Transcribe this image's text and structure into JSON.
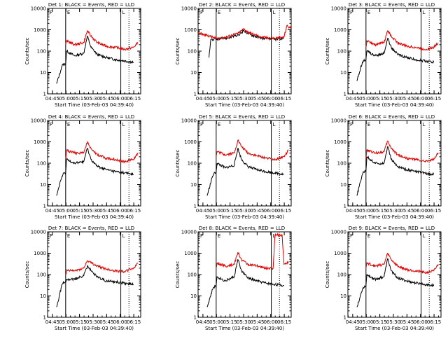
{
  "chart_data": [
    {
      "type": "line",
      "title": "Det 1: BLACK = Events, RED = LLD",
      "xlabel": "Start Time (03-Feb-03 04:39:40)",
      "ylabel": "Counts/sec",
      "y_scale": "log",
      "ylim": [
        1,
        10000
      ],
      "y_ticks": [
        "1",
        "10",
        "100",
        "1000",
        "10000"
      ],
      "x_ticks": [
        "04:45",
        "05:00",
        "05:15",
        "05:30",
        "05:45",
        "06:00",
        "06:15"
      ],
      "x_tick_minutes": [
        5.33,
        20.33,
        35.33,
        50.33,
        65.33,
        80.33,
        95.33
      ],
      "xlim_minutes": [
        0,
        103
      ],
      "markers": {
        "solid_lines_minutes": [
          20,
          81
        ],
        "dotted_line_minutes": 90,
        "labels": [
          "F",
          "E",
          "L"
        ]
      },
      "series": [
        {
          "name": "Events",
          "color": "#000000",
          "x_minutes": [
            10,
            16,
            17,
            20,
            21,
            30,
            40,
            44,
            48,
            55,
            65,
            75,
            85,
            95
          ],
          "values": [
            3,
            20,
            25,
            25,
            100,
            60,
            80,
            500,
            150,
            70,
            50,
            40,
            35,
            30
          ]
        },
        {
          "name": "LLD",
          "color": "#e00000",
          "x_minutes": [
            20,
            21,
            30,
            40,
            44,
            48,
            55,
            65,
            75,
            85,
            95,
            100
          ],
          "values": [
            200,
            300,
            200,
            250,
            900,
            500,
            250,
            170,
            150,
            120,
            150,
            250
          ]
        }
      ]
    },
    {
      "type": "line",
      "title": "Det 2: BLACK = Events, RED = LLD",
      "xlabel": "Start Time (03-Feb-03 04:39:40)",
      "ylabel": "Counts/sec",
      "y_scale": "log",
      "ylim": [
        1,
        10000
      ],
      "y_ticks": [
        "1",
        "10",
        "100",
        "1000",
        "10000"
      ],
      "x_ticks": [
        "04:45",
        "05:00",
        "05:15",
        "05:30",
        "05:45",
        "06:00",
        "06:15"
      ],
      "x_tick_minutes": [
        5.33,
        20.33,
        35.33,
        50.33,
        65.33,
        80.33,
        95.33
      ],
      "xlim_minutes": [
        0,
        103
      ],
      "markers": {
        "solid_lines_minutes": [
          20,
          81
        ],
        "dotted_line_minutes": 90,
        "labels": [
          "F",
          "E",
          "L"
        ]
      },
      "series": [
        {
          "name": "Events",
          "color": "#000000",
          "x_minutes": [
            12,
            14,
            20,
            30,
            45,
            50,
            58,
            70,
            85,
            95
          ],
          "values": [
            50,
            350,
            350,
            400,
            550,
            900,
            600,
            400,
            350,
            400
          ]
        },
        {
          "name": "LLD",
          "color": "#e00000",
          "x_minutes": [
            0,
            10,
            20,
            30,
            45,
            50,
            58,
            70,
            85,
            95,
            98,
            103
          ],
          "values": [
            700,
            550,
            400,
            450,
            700,
            1100,
            700,
            450,
            400,
            450,
            1500,
            1200
          ]
        }
      ]
    },
    {
      "type": "line",
      "title": "Det 3: BLACK = Events, RED = LLD",
      "xlabel": "Start Time (03-Feb-03 04:39:40)",
      "ylabel": "Counts/sec",
      "y_scale": "log",
      "ylim": [
        1,
        10000
      ],
      "y_ticks": [
        "1",
        "10",
        "100",
        "1000",
        "10000"
      ],
      "x_ticks": [
        "04:45",
        "05:00",
        "05:15",
        "05:30",
        "05:45",
        "06:00",
        "06:15"
      ],
      "x_tick_minutes": [
        5.33,
        20.33,
        35.33,
        50.33,
        65.33,
        80.33,
        95.33
      ],
      "xlim_minutes": [
        0,
        103
      ],
      "markers": {
        "solid_lines_minutes": [
          20,
          81
        ],
        "dotted_line_minutes": 90,
        "labels": [
          "F",
          "E",
          "L"
        ]
      },
      "series": [
        {
          "name": "Events",
          "color": "#000000",
          "x_minutes": [
            10,
            16,
            17,
            20,
            21,
            30,
            40,
            44,
            48,
            55,
            65,
            75,
            85,
            95
          ],
          "values": [
            4,
            30,
            35,
            40,
            100,
            60,
            80,
            400,
            150,
            70,
            50,
            40,
            35,
            30
          ]
        },
        {
          "name": "LLD",
          "color": "#e00000",
          "x_minutes": [
            20,
            21,
            30,
            40,
            44,
            48,
            55,
            65,
            75,
            85,
            95,
            100
          ],
          "values": [
            150,
            300,
            200,
            250,
            900,
            500,
            250,
            170,
            150,
            120,
            150,
            250
          ]
        }
      ]
    },
    {
      "type": "line",
      "title": "Det 4: BLACK = Events, RED = LLD",
      "xlabel": "Start Time (03-Feb-03 04:39:40)",
      "ylabel": "Counts/sec",
      "y_scale": "log",
      "ylim": [
        1,
        10000
      ],
      "y_ticks": [
        "1",
        "10",
        "100",
        "1000",
        "10000"
      ],
      "x_ticks": [
        "04:45",
        "05:00",
        "05:15",
        "05:30",
        "05:45",
        "06:00",
        "06:15"
      ],
      "x_tick_minutes": [
        5.33,
        20.33,
        35.33,
        50.33,
        65.33,
        80.33,
        95.33
      ],
      "xlim_minutes": [
        0,
        103
      ],
      "markers": {
        "solid_lines_minutes": [
          20,
          81
        ],
        "dotted_line_minutes": 90,
        "labels": [
          "F",
          "E",
          "L"
        ]
      },
      "series": [
        {
          "name": "Events",
          "color": "#000000",
          "x_minutes": [
            10,
            16,
            17,
            20,
            21,
            30,
            40,
            44,
            48,
            55,
            65,
            75,
            85,
            95
          ],
          "values": [
            3,
            25,
            30,
            35,
            150,
            100,
            120,
            500,
            150,
            70,
            50,
            40,
            35,
            30
          ]
        },
        {
          "name": "LLD",
          "color": "#e00000",
          "x_minutes": [
            20,
            21,
            30,
            40,
            44,
            48,
            55,
            65,
            75,
            85,
            95,
            100
          ],
          "values": [
            150,
            400,
            300,
            300,
            1000,
            500,
            250,
            170,
            150,
            120,
            150,
            300
          ]
        }
      ]
    },
    {
      "type": "line",
      "title": "Det 5: BLACK = Events, RED = LLD",
      "xlabel": "Start Time (03-Feb-03 04:39:40)",
      "ylabel": "Counts/sec",
      "y_scale": "log",
      "ylim": [
        1,
        10000
      ],
      "y_ticks": [
        "1",
        "10",
        "100",
        "1000",
        "10000"
      ],
      "x_ticks": [
        "04:45",
        "05:00",
        "05:15",
        "05:30",
        "05:45",
        "06:00",
        "06:15"
      ],
      "x_tick_minutes": [
        5.33,
        20.33,
        35.33,
        50.33,
        65.33,
        80.33,
        95.33
      ],
      "xlim_minutes": [
        0,
        103
      ],
      "markers": {
        "solid_lines_minutes": [
          20,
          81
        ],
        "dotted_line_minutes": 90,
        "labels": [
          "F",
          "E",
          "L"
        ]
      },
      "series": [
        {
          "name": "Events",
          "color": "#000000",
          "x_minutes": [
            10,
            16,
            17,
            20,
            21,
            30,
            40,
            44,
            48,
            55,
            65,
            75,
            85,
            95
          ],
          "values": [
            3,
            25,
            30,
            40,
            100,
            60,
            80,
            500,
            150,
            70,
            50,
            40,
            35,
            30
          ]
        },
        {
          "name": "LLD",
          "color": "#e00000",
          "x_minutes": [
            20,
            21,
            30,
            40,
            44,
            48,
            55,
            65,
            75,
            85,
            95,
            100
          ],
          "values": [
            200,
            350,
            250,
            300,
            1200,
            600,
            300,
            220,
            180,
            150,
            200,
            400
          ]
        }
      ]
    },
    {
      "type": "line",
      "title": "Det 6: BLACK = Events, RED = LLD",
      "xlabel": "Start Time (03-Feb-03 04:39:40)",
      "ylabel": "Counts/sec",
      "y_scale": "log",
      "ylim": [
        1,
        10000
      ],
      "y_ticks": [
        "1",
        "10",
        "100",
        "1000",
        "10000"
      ],
      "x_ticks": [
        "04:45",
        "05:00",
        "05:15",
        "05:30",
        "05:45",
        "06:00",
        "06:15"
      ],
      "x_tick_minutes": [
        5.33,
        20.33,
        35.33,
        50.33,
        65.33,
        80.33,
        95.33
      ],
      "xlim_minutes": [
        0,
        103
      ],
      "markers": {
        "solid_lines_minutes": [
          20,
          81
        ],
        "dotted_line_minutes": 90,
        "labels": [
          "F",
          "E",
          "L"
        ]
      },
      "series": [
        {
          "name": "Events",
          "color": "#000000",
          "x_minutes": [
            10,
            16,
            17,
            20,
            21,
            30,
            40,
            44,
            48,
            55,
            65,
            75,
            85,
            95
          ],
          "values": [
            3,
            30,
            40,
            45,
            200,
            100,
            100,
            600,
            150,
            70,
            50,
            40,
            35,
            30
          ]
        },
        {
          "name": "LLD",
          "color": "#e00000",
          "x_minutes": [
            20,
            21,
            30,
            40,
            44,
            48,
            55,
            65,
            75,
            85,
            95,
            100
          ],
          "values": [
            150,
            400,
            300,
            350,
            1100,
            500,
            250,
            170,
            150,
            120,
            150,
            300
          ]
        }
      ]
    },
    {
      "type": "line",
      "title": "Det 7: BLACK = Events, RED = LLD",
      "xlabel": "Start Time (03-Feb-03 04:39:40)",
      "ylabel": "Counts/sec",
      "y_scale": "log",
      "ylim": [
        1,
        10000
      ],
      "y_ticks": [
        "1",
        "10",
        "100",
        "1000",
        "10000"
      ],
      "x_ticks": [
        "04:45",
        "05:00",
        "05:15",
        "05:30",
        "05:45",
        "06:00",
        "06:15"
      ],
      "x_tick_minutes": [
        5.33,
        20.33,
        35.33,
        50.33,
        65.33,
        80.33,
        95.33
      ],
      "xlim_minutes": [
        0,
        103
      ],
      "markers": {
        "solid_lines_minutes": [
          20,
          81
        ],
        "dotted_line_minutes": 90,
        "labels": [
          "F",
          "E",
          "L"
        ]
      },
      "series": [
        {
          "name": "Events",
          "color": "#000000",
          "x_minutes": [
            10,
            16,
            17,
            20,
            21,
            30,
            40,
            44,
            48,
            55,
            65,
            75,
            85,
            95
          ],
          "values": [
            3,
            35,
            40,
            50,
            60,
            60,
            90,
            250,
            150,
            80,
            50,
            45,
            40,
            35
          ]
        },
        {
          "name": "LLD",
          "color": "#e00000",
          "x_minutes": [
            20,
            21,
            30,
            40,
            44,
            48,
            55,
            65,
            75,
            85,
            95,
            100
          ],
          "values": [
            100,
            150,
            150,
            200,
            450,
            350,
            250,
            180,
            150,
            140,
            200,
            350
          ]
        }
      ]
    },
    {
      "type": "line",
      "title": "Det 8: BLACK = Events, RED = LLD",
      "xlabel": "Start Time (03-Feb-03 04:39:40)",
      "ylabel": "Counts/sec",
      "y_scale": "log",
      "ylim": [
        1,
        10000
      ],
      "y_ticks": [
        "1",
        "10",
        "100",
        "1000",
        "10000"
      ],
      "x_ticks": [
        "04:45",
        "05:00",
        "05:15",
        "05:30",
        "05:45",
        "06:00",
        "06:15"
      ],
      "x_tick_minutes": [
        5.33,
        20.33,
        35.33,
        50.33,
        65.33,
        80.33,
        95.33
      ],
      "xlim_minutes": [
        0,
        103
      ],
      "markers": {
        "solid_lines_minutes": [
          20,
          81
        ],
        "dotted_line_minutes": 90,
        "labels": [
          "F",
          "E",
          "L"
        ]
      },
      "series": [
        {
          "name": "Events",
          "color": "#000000",
          "x_minutes": [
            10,
            16,
            17,
            20,
            21,
            30,
            40,
            44,
            48,
            55,
            65,
            75,
            85,
            95
          ],
          "values": [
            3,
            20,
            25,
            30,
            80,
            50,
            80,
            500,
            150,
            70,
            50,
            40,
            35,
            30
          ]
        },
        {
          "name": "LLD",
          "color": "#e00000",
          "x_minutes": [
            20,
            21,
            30,
            40,
            44,
            48,
            55,
            65,
            75,
            83,
            85,
            93,
            95,
            100
          ],
          "values": [
            200,
            350,
            250,
            300,
            1100,
            500,
            300,
            250,
            200,
            200,
            7000,
            7000,
            300,
            400
          ]
        }
      ]
    },
    {
      "type": "line",
      "title": "Det 9: BLACK = Events, RED = LLD",
      "xlabel": "Start Time (03-Feb-03 04:39:40)",
      "ylabel": "Counts/sec",
      "y_scale": "log",
      "ylim": [
        1,
        10000
      ],
      "y_ticks": [
        "1",
        "10",
        "100",
        "1000",
        "10000"
      ],
      "x_ticks": [
        "04:45",
        "05:00",
        "05:15",
        "05:30",
        "05:45",
        "06:00",
        "06:15"
      ],
      "x_tick_minutes": [
        5.33,
        20.33,
        35.33,
        50.33,
        65.33,
        80.33,
        95.33
      ],
      "xlim_minutes": [
        0,
        103
      ],
      "markers": {
        "solid_lines_minutes": [
          20,
          81
        ],
        "dotted_line_minutes": 90,
        "labels": [
          "F",
          "E",
          "L"
        ]
      },
      "series": [
        {
          "name": "Events",
          "color": "#000000",
          "x_minutes": [
            10,
            16,
            17,
            20,
            21,
            30,
            40,
            44,
            48,
            55,
            65,
            75,
            85,
            95
          ],
          "values": [
            3,
            20,
            25,
            30,
            100,
            60,
            80,
            550,
            150,
            70,
            50,
            40,
            35,
            30
          ]
        },
        {
          "name": "LLD",
          "color": "#e00000",
          "x_minutes": [
            20,
            21,
            30,
            40,
            44,
            48,
            55,
            65,
            75,
            85,
            95,
            100
          ],
          "values": [
            200,
            350,
            250,
            300,
            1000,
            500,
            250,
            170,
            150,
            120,
            150,
            300
          ]
        }
      ]
    }
  ]
}
